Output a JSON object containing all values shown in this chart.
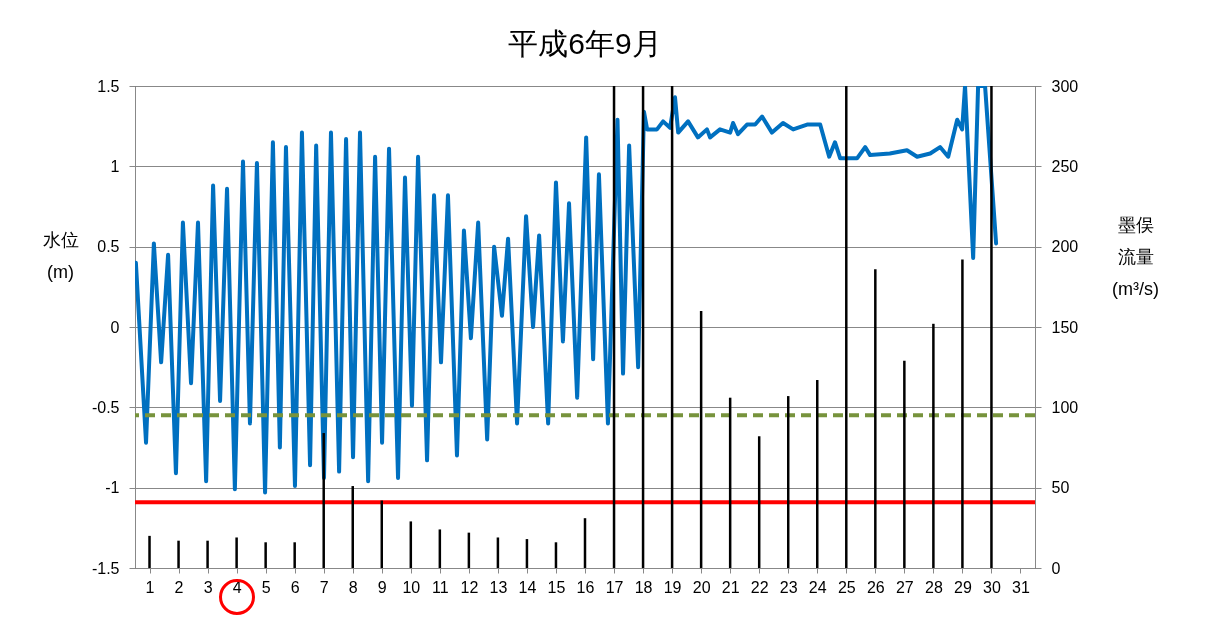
{
  "chart_data": {
    "type": "line",
    "title": "平成6年9月",
    "ylabel": "水位 (m)",
    "y2label": "墨俣流量 (m³/s)",
    "xlim": [
      0.5,
      31.5
    ],
    "xticks": [
      1,
      2,
      3,
      4,
      5,
      6,
      7,
      8,
      9,
      10,
      11,
      12,
      13,
      14,
      15,
      16,
      17,
      18,
      19,
      20,
      21,
      22,
      23,
      24,
      25,
      26,
      27,
      28,
      29,
      30,
      31
    ],
    "ylim": [
      -1.5,
      1.5
    ],
    "yticks": [
      -1.5,
      -1,
      -0.5,
      0,
      0.5,
      1,
      1.5
    ],
    "y2lim": [
      0,
      300
    ],
    "y2ticks": [
      0,
      50,
      100,
      150,
      200,
      250,
      300
    ],
    "grid": "y",
    "marker": "none",
    "series": [
      {
        "type": "bar",
        "axis": "y2",
        "color": "#000000",
        "x": [
          1,
          2,
          3,
          4,
          5,
          6,
          7,
          8,
          9,
          10,
          11,
          12,
          13,
          14,
          15,
          16,
          17,
          18,
          19,
          20,
          21,
          22,
          23,
          24,
          25,
          26,
          27,
          28,
          29,
          30
        ],
        "values": [
          20,
          17,
          17,
          19,
          16,
          16,
          84,
          51,
          42,
          29,
          24,
          22,
          19,
          18,
          16,
          31,
          300,
          300,
          300,
          160,
          106,
          82,
          107,
          117,
          300,
          186,
          129,
          152,
          192,
          300
        ]
      },
      {
        "color": "#0070c0",
        "line_style": "solid",
        "x": [
          0.53,
          0.88,
          1.15,
          1.4,
          1.64,
          1.91,
          2.15,
          2.43,
          2.67,
          2.95,
          3.19,
          3.43,
          3.67,
          3.94,
          4.22,
          4.46,
          4.7,
          4.98,
          5.25,
          5.49,
          5.7,
          6.01,
          6.25,
          6.53,
          6.74,
          7.01,
          7.25,
          7.53,
          7.77,
          8.01,
          8.25,
          8.53,
          8.77,
          9.01,
          9.25,
          9.56,
          9.8,
          10.04,
          10.25,
          10.56,
          10.8,
          11.04,
          11.28,
          11.59,
          11.83,
          12.07,
          12.32,
          12.63,
          12.87,
          13.14,
          13.35,
          13.66,
          13.97,
          14.21,
          14.42,
          14.73,
          15.0,
          15.24,
          15.45,
          15.73,
          16.04,
          16.28,
          16.48,
          16.79,
          17.12,
          17.31,
          17.52,
          17.83,
          18.03,
          18.14,
          18.48,
          18.69,
          18.93,
          19.1,
          19.21,
          19.55,
          19.89,
          20.2,
          20.31,
          20.65,
          21.0,
          21.1,
          21.27,
          21.58,
          21.86,
          22.1,
          22.44,
          22.82,
          23.17,
          23.65,
          24.1,
          24.41,
          24.61,
          24.79,
          25.37,
          25.65,
          25.82,
          26.5,
          27.09,
          27.44,
          27.89,
          28.23,
          28.51,
          28.82,
          28.99,
          29.09,
          29.37,
          29.54,
          29.78,
          30.16
        ],
        "values": [
          0.4,
          -0.72,
          0.52,
          -0.22,
          0.45,
          -0.91,
          0.65,
          -0.35,
          0.65,
          -0.96,
          0.88,
          -0.46,
          0.86,
          -1.01,
          1.03,
          -0.6,
          1.02,
          -1.03,
          1.15,
          -0.75,
          1.12,
          -0.99,
          1.21,
          -0.86,
          1.13,
          -0.94,
          1.21,
          -0.9,
          1.17,
          -0.81,
          1.21,
          -0.96,
          1.06,
          -0.72,
          1.11,
          -0.94,
          0.93,
          -0.49,
          1.06,
          -0.83,
          0.82,
          -0.22,
          0.82,
          -0.8,
          0.6,
          -0.07,
          0.65,
          -0.7,
          0.5,
          0.07,
          0.55,
          -0.6,
          0.69,
          0.0,
          0.57,
          -0.6,
          0.9,
          -0.09,
          0.77,
          -0.44,
          1.18,
          -0.2,
          0.95,
          -0.6,
          1.29,
          -0.29,
          1.13,
          -0.25,
          1.34,
          1.23,
          1.23,
          1.28,
          1.24,
          1.43,
          1.21,
          1.28,
          1.18,
          1.23,
          1.18,
          1.23,
          1.21,
          1.27,
          1.2,
          1.26,
          1.26,
          1.31,
          1.21,
          1.27,
          1.23,
          1.26,
          1.26,
          1.06,
          1.15,
          1.05,
          1.05,
          1.12,
          1.07,
          1.08,
          1.1,
          1.06,
          1.08,
          1.12,
          1.06,
          1.29,
          1.23,
          1.5,
          0.43,
          1.5,
          1.5,
          0.52
        ]
      }
    ],
    "ref_lines": [
      {
        "axis": "y",
        "value": -0.55,
        "color": "#77933c",
        "line_style": "dashed"
      },
      {
        "axis": "y",
        "value": -1.09,
        "color": "#ff0000",
        "line_style": "solid"
      }
    ]
  }
}
